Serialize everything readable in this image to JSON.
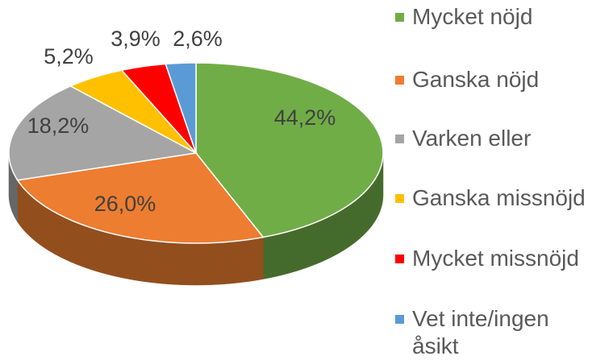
{
  "chart_data": {
    "type": "pie",
    "categories": [
      "Mycket nöjd",
      "Ganska nöjd",
      "Varken eller",
      "Ganska missnöjd",
      "Mycket missnöjd",
      "Vet inte/ingen åsikt"
    ],
    "values": [
      44.2,
      26.0,
      18.2,
      5.2,
      3.9,
      2.6
    ],
    "value_labels": [
      "44,2%",
      "26,0%",
      "18,2%",
      "5,2%",
      "3,9%",
      "2,6%"
    ],
    "colors": [
      "#70ad47",
      "#ed7d31",
      "#a5a5a5",
      "#ffc000",
      "#ff0000",
      "#5b9bd5"
    ],
    "legend": "right"
  }
}
